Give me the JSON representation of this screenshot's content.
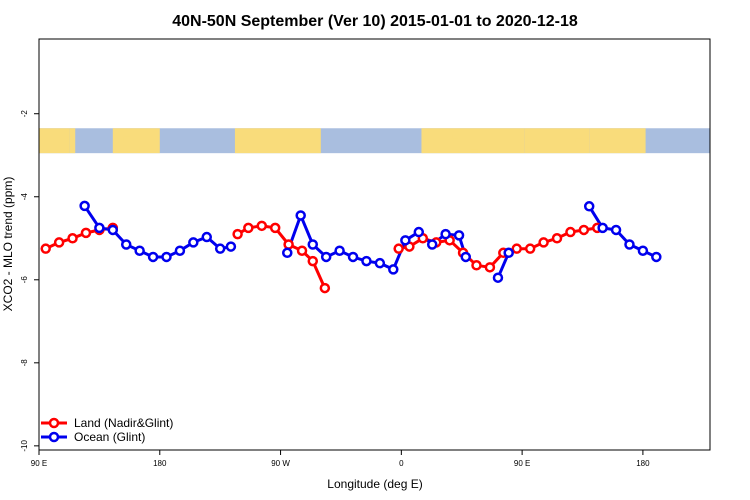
{
  "chart_data": {
    "type": "line",
    "title": "40N-50N September (Ver 10)   2015-01-01 to 2020-12-18",
    "xlabel": "Longitude (deg E)",
    "ylabel": "XCO2 - MLO trend (ppm)",
    "xlim": [
      90,
      590
    ],
    "ylim": [
      -10.1,
      -0.2
    ],
    "x_ticks": [
      {
        "value": 90,
        "label": "90 E"
      },
      {
        "value": 180,
        "label": "180"
      },
      {
        "value": 270,
        "label": "90 W"
      },
      {
        "value": 360,
        "label": "0"
      },
      {
        "value": 450,
        "label": "90 E"
      },
      {
        "value": 540,
        "label": "180"
      }
    ],
    "y_ticks": [
      {
        "value": -2,
        "label": "-2"
      },
      {
        "value": -4,
        "label": "-4"
      },
      {
        "value": -6,
        "label": "-6"
      },
      {
        "value": -8,
        "label": "-8"
      },
      {
        "value": -10,
        "label": "-10"
      }
    ],
    "map_strip": {
      "lat_range": [
        40,
        50
      ],
      "y_top": -2.35,
      "y_bottom": -2.95,
      "land_color": "#f9dc7b",
      "ocean_color": "#a9bedf"
    },
    "legend": {
      "position": "bottom-left"
    },
    "series": [
      {
        "name": "Land (Nadir&Glint)",
        "color": "#ff0000",
        "segments": [
          [
            [
              95,
              -5.25
            ],
            [
              105,
              -5.1
            ],
            [
              115,
              -5.0
            ],
            [
              125,
              -4.87
            ],
            [
              135,
              -4.8
            ],
            [
              145,
              -4.75
            ]
          ],
          [
            [
              238,
              -4.9
            ],
            [
              246,
              -4.75
            ],
            [
              256,
              -4.7
            ],
            [
              266,
              -4.75
            ],
            [
              276,
              -5.15
            ],
            [
              286,
              -5.3
            ],
            [
              294,
              -5.55
            ],
            [
              303,
              -6.2
            ]
          ],
          [
            [
              358,
              -5.25
            ],
            [
              366,
              -5.2
            ],
            [
              376,
              -5.0
            ],
            [
              386,
              -5.1
            ],
            [
              396,
              -5.05
            ],
            [
              406,
              -5.35
            ],
            [
              416,
              -5.65
            ],
            [
              426,
              -5.7
            ],
            [
              436,
              -5.35
            ],
            [
              446,
              -5.25
            ],
            [
              456,
              -5.25
            ],
            [
              466,
              -5.1
            ],
            [
              476,
              -5.0
            ],
            [
              486,
              -4.85
            ],
            [
              496,
              -4.8
            ],
            [
              506,
              -4.75
            ]
          ]
        ]
      },
      {
        "name": "Ocean (Glint)",
        "color": "#0000ee",
        "segments": [
          [
            [
              124,
              -4.22
            ],
            [
              135,
              -4.75
            ],
            [
              145,
              -4.8
            ],
            [
              155,
              -5.15
            ],
            [
              165,
              -5.3
            ],
            [
              175,
              -5.45
            ],
            [
              185,
              -5.45
            ],
            [
              195,
              -5.3
            ],
            [
              205,
              -5.1
            ],
            [
              215,
              -4.97
            ],
            [
              225,
              -5.25
            ],
            [
              233,
              -5.2
            ]
          ],
          [
            [
              275,
              -5.35
            ],
            [
              285,
              -4.45
            ],
            [
              294,
              -5.15
            ],
            [
              304,
              -5.45
            ],
            [
              314,
              -5.3
            ],
            [
              324,
              -5.45
            ],
            [
              334,
              -5.55
            ],
            [
              344,
              -5.6
            ],
            [
              354,
              -5.75
            ],
            [
              363,
              -5.05
            ],
            [
              373,
              -4.85
            ],
            [
              383,
              -5.15
            ],
            [
              393,
              -4.9
            ],
            [
              403,
              -4.93
            ],
            [
              408,
              -5.45
            ]
          ],
          [
            [
              432,
              -5.95
            ],
            [
              440,
              -5.35
            ]
          ],
          [
            [
              500,
              -4.23
            ],
            [
              510,
              -4.75
            ],
            [
              520,
              -4.8
            ],
            [
              530,
              -5.15
            ],
            [
              540,
              -5.3
            ],
            [
              550,
              -5.45
            ]
          ]
        ]
      }
    ]
  }
}
